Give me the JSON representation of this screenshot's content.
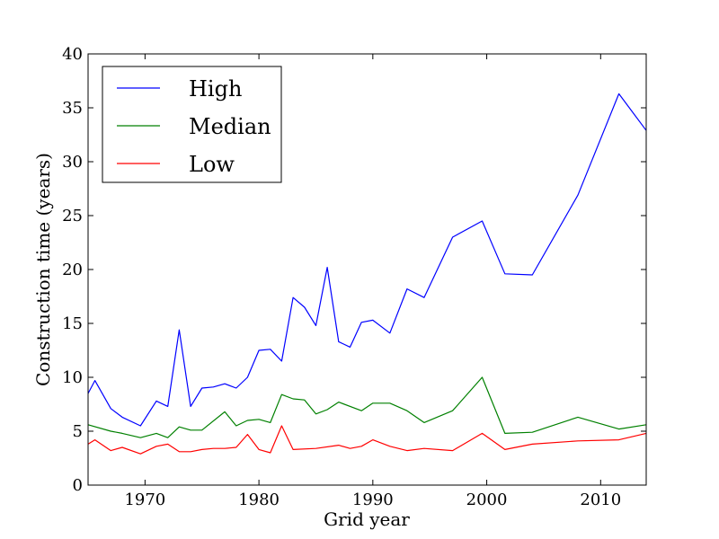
{
  "chart_data": {
    "type": "line",
    "title": "",
    "xlabel": "Grid year",
    "ylabel": "Construction time (years)",
    "xlim": [
      1965,
      2014
    ],
    "ylim": [
      0,
      40
    ],
    "xticks": [
      1970,
      1980,
      1990,
      2000,
      2010
    ],
    "yticks": [
      0,
      5,
      10,
      15,
      20,
      25,
      30,
      35,
      40
    ],
    "grid": false,
    "legend_position": "top-left",
    "series": [
      {
        "name": "High",
        "color": "#0000ff",
        "points": [
          [
            1965,
            8.5
          ],
          [
            1965.6,
            9.7
          ],
          [
            1967,
            7.1
          ],
          [
            1968,
            6.3
          ],
          [
            1969.6,
            5.5
          ],
          [
            1971,
            7.8
          ],
          [
            1972,
            7.3
          ],
          [
            1973,
            14.4
          ],
          [
            1974,
            7.3
          ],
          [
            1975,
            9.0
          ],
          [
            1976,
            9.1
          ],
          [
            1977,
            9.4
          ],
          [
            1978,
            9.0
          ],
          [
            1979,
            10.0
          ],
          [
            1980,
            12.5
          ],
          [
            1981,
            12.6
          ],
          [
            1982,
            11.5
          ],
          [
            1983,
            17.4
          ],
          [
            1984,
            16.5
          ],
          [
            1985,
            14.8
          ],
          [
            1986,
            20.2
          ],
          [
            1987,
            13.3
          ],
          [
            1988,
            12.8
          ],
          [
            1989,
            15.1
          ],
          [
            1990,
            15.3
          ],
          [
            1991.5,
            14.1
          ],
          [
            1993,
            18.2
          ],
          [
            1994.5,
            17.4
          ],
          [
            1997,
            23.0
          ],
          [
            1999.6,
            24.5
          ],
          [
            2001.6,
            19.6
          ],
          [
            2004,
            19.5
          ],
          [
            2008,
            26.9
          ],
          [
            2011.6,
            36.3
          ],
          [
            2014,
            32.9
          ]
        ]
      },
      {
        "name": "Median",
        "color": "#008000",
        "points": [
          [
            1965,
            5.6
          ],
          [
            1967,
            5.0
          ],
          [
            1968,
            4.8
          ],
          [
            1969.6,
            4.4
          ],
          [
            1971,
            4.8
          ],
          [
            1972,
            4.4
          ],
          [
            1973,
            5.4
          ],
          [
            1974,
            5.1
          ],
          [
            1975,
            5.1
          ],
          [
            1977,
            6.8
          ],
          [
            1978,
            5.5
          ],
          [
            1979,
            6.0
          ],
          [
            1980,
            6.1
          ],
          [
            1981,
            5.8
          ],
          [
            1982,
            8.4
          ],
          [
            1983,
            8.0
          ],
          [
            1984,
            7.9
          ],
          [
            1985,
            6.6
          ],
          [
            1986,
            7.0
          ],
          [
            1987,
            7.7
          ],
          [
            1989,
            6.9
          ],
          [
            1990,
            7.6
          ],
          [
            1991.5,
            7.6
          ],
          [
            1993,
            6.9
          ],
          [
            1994.5,
            5.8
          ],
          [
            1997,
            6.9
          ],
          [
            1999.6,
            10.0
          ],
          [
            2001.6,
            4.8
          ],
          [
            2004,
            4.9
          ],
          [
            2008,
            6.3
          ],
          [
            2011.6,
            5.2
          ],
          [
            2014,
            5.6
          ]
        ]
      },
      {
        "name": "Low",
        "color": "#ff0000",
        "points": [
          [
            1965,
            3.8
          ],
          [
            1965.6,
            4.2
          ],
          [
            1967,
            3.2
          ],
          [
            1968,
            3.5
          ],
          [
            1969.6,
            2.9
          ],
          [
            1971,
            3.6
          ],
          [
            1972,
            3.8
          ],
          [
            1973,
            3.1
          ],
          [
            1974,
            3.1
          ],
          [
            1975,
            3.3
          ],
          [
            1976,
            3.4
          ],
          [
            1977,
            3.4
          ],
          [
            1978,
            3.5
          ],
          [
            1979,
            4.7
          ],
          [
            1980,
            3.3
          ],
          [
            1981,
            3.0
          ],
          [
            1982,
            5.5
          ],
          [
            1983,
            3.3
          ],
          [
            1985,
            3.4
          ],
          [
            1987,
            3.7
          ],
          [
            1988,
            3.4
          ],
          [
            1989,
            3.6
          ],
          [
            1990,
            4.2
          ],
          [
            1991.5,
            3.6
          ],
          [
            1993,
            3.2
          ],
          [
            1994.5,
            3.4
          ],
          [
            1997,
            3.2
          ],
          [
            1999.6,
            4.8
          ],
          [
            2001.6,
            3.3
          ],
          [
            2004,
            3.8
          ],
          [
            2008,
            4.1
          ],
          [
            2011.6,
            4.2
          ],
          [
            2014,
            4.8
          ]
        ]
      }
    ]
  }
}
